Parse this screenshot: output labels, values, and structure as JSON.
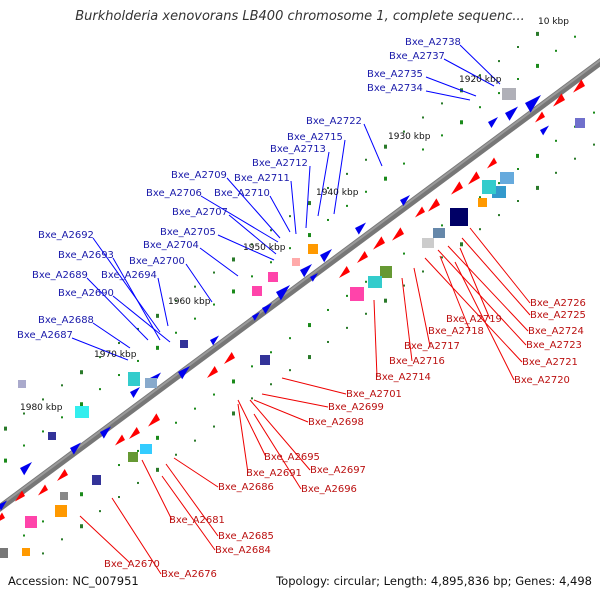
{
  "title": "Burkholderia xenovorans LB400 chromosome 1, complete sequenc...",
  "footer": {
    "accession": "Accession: NC_007951",
    "summary": "Topology: circular; Length: 4,895,836 bp; Genes: 4,498"
  },
  "scale_labels": [
    "10 kbp",
    "1920 kbp",
    "1930 kbp",
    "1940 kbp",
    "1950 kbp",
    "1960 kbp",
    "1970 kbp",
    "1980 kbp"
  ],
  "colors": {
    "forward_gene": "#0000ee",
    "reverse_gene": "#ff0000",
    "forward_label_line": "#0000ff",
    "reverse_label_line": "#ee0000",
    "backbone": "#666666",
    "tick_dots": "#1a8a1a"
  },
  "forward_gene_labels": [
    "Bxe_A2738",
    "Bxe_A2737",
    "Bxe_A2735",
    "Bxe_A2734",
    "Bxe_A2722",
    "Bxe_A2715",
    "Bxe_A2713",
    "Bxe_A2712",
    "Bxe_A2709",
    "Bxe_A2711",
    "Bxe_A2706",
    "Bxe_A2710",
    "Bxe_A2707",
    "Bxe_A2705",
    "Bxe_A2704",
    "Bxe_A2700",
    "Bxe_A2692",
    "Bxe_A2693",
    "Bxe_A2689",
    "Bxe_A2694",
    "Bxe_A2690",
    "Bxe_A2688",
    "Bxe_A2687"
  ],
  "reverse_gene_labels": [
    "Bxe_A2726",
    "Bxe_A2725",
    "Bxe_A2724",
    "Bxe_A2723",
    "Bxe_A2721",
    "Bxe_A2720",
    "Bxe_A2719",
    "Bxe_A2718",
    "Bxe_A2717",
    "Bxe_A2716",
    "Bxe_A2714",
    "Bxe_A2701",
    "Bxe_A2699",
    "Bxe_A2698",
    "Bxe_A2695",
    "Bxe_A2697",
    "Bxe_A2691",
    "Bxe_A2696",
    "Bxe_A2686",
    "Bxe_A2681",
    "Bxe_A2685",
    "Bxe_A2684",
    "Bxe_A2670",
    "Bxe_A2676"
  ]
}
